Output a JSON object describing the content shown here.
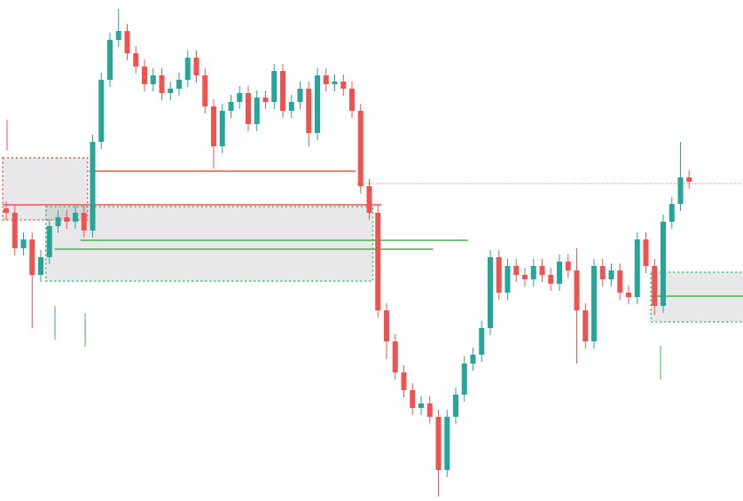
{
  "chart_data": {
    "type": "candlestick",
    "up_color": "#26a69a",
    "down_color": "#ef5350",
    "ylim": [
      0,
      565
    ],
    "open": [
      330,
      325,
      285,
      295,
      255,
      275,
      310,
      320,
      315,
      325,
      305,
      405,
      475,
      520,
      530,
      505,
      490,
      470,
      480,
      460,
      465,
      475,
      500,
      480,
      445,
      400,
      440,
      450,
      460,
      425,
      455,
      450,
      485,
      440,
      450,
      465,
      415,
      480,
      470,
      473,
      465,
      440,
      355,
      325,
      215,
      180,
      145,
      125,
      105,
      110,
      95,
      35,
      95,
      120,
      155,
      165,
      195,
      275,
      235,
      265,
      255,
      250,
      265,
      255,
      245,
      270,
      260,
      215,
      180,
      265,
      250,
      260,
      235,
      230,
      295,
      265,
      220,
      315,
      335,
      365
    ],
    "high": [
      338,
      333,
      303,
      303,
      283,
      318,
      328,
      328,
      333,
      333,
      413,
      483,
      528,
      555,
      538,
      513,
      498,
      488,
      488,
      473,
      483,
      508,
      508,
      488,
      453,
      448,
      458,
      468,
      468,
      463,
      463,
      493,
      493,
      458,
      473,
      473,
      488,
      488,
      481,
      481,
      473,
      448,
      363,
      333,
      223,
      188,
      153,
      133,
      118,
      118,
      103,
      103,
      128,
      163,
      173,
      203,
      283,
      283,
      273,
      273,
      263,
      273,
      273,
      263,
      278,
      278,
      285,
      223,
      273,
      273,
      268,
      268,
      243,
      303,
      303,
      273,
      323,
      343,
      405,
      373
    ],
    "low": [
      317,
      277,
      277,
      195,
      247,
      267,
      302,
      307,
      307,
      297,
      297,
      397,
      467,
      512,
      497,
      482,
      462,
      462,
      452,
      452,
      457,
      467,
      472,
      437,
      375,
      392,
      432,
      442,
      417,
      417,
      442,
      442,
      432,
      432,
      442,
      400,
      407,
      462,
      462,
      457,
      432,
      347,
      317,
      207,
      160,
      137,
      117,
      97,
      97,
      87,
      5,
      27,
      87,
      112,
      147,
      157,
      187,
      227,
      227,
      247,
      242,
      242,
      247,
      237,
      237,
      252,
      155,
      172,
      172,
      242,
      242,
      227,
      222,
      222,
      257,
      210,
      212,
      307,
      327,
      352
    ],
    "close": [
      325,
      285,
      295,
      255,
      275,
      310,
      320,
      315,
      325,
      305,
      405,
      475,
      520,
      530,
      505,
      490,
      470,
      480,
      460,
      465,
      475,
      500,
      480,
      445,
      400,
      440,
      450,
      460,
      425,
      455,
      450,
      485,
      440,
      450,
      465,
      415,
      480,
      470,
      473,
      465,
      440,
      355,
      325,
      215,
      180,
      145,
      125,
      105,
      110,
      95,
      35,
      95,
      120,
      155,
      165,
      195,
      275,
      235,
      265,
      255,
      250,
      265,
      255,
      245,
      270,
      260,
      215,
      180,
      265,
      250,
      260,
      235,
      230,
      295,
      265,
      220,
      315,
      335,
      365,
      360
    ],
    "zones": [
      {
        "top": 387,
        "bottom": 317,
        "from": 0,
        "to": 9,
        "color": "#ef5350"
      },
      {
        "top": 332,
        "bottom": 248,
        "from": 5,
        "to": 42,
        "color": "#22c55e"
      },
      {
        "top": 258,
        "bottom": 202,
        "from": 75,
        "to": 85,
        "color": "#22c55e"
      }
    ],
    "levels": [
      {
        "price": 372,
        "from": 10,
        "to": 40,
        "color": "#ef5350"
      },
      {
        "price": 334,
        "from": 0,
        "to": 43,
        "color": "#ef5350"
      },
      {
        "price": 294,
        "from": 9,
        "to": 53,
        "color": "#4caf50"
      },
      {
        "price": 284,
        "from": 6,
        "to": 49,
        "color": "#4caf50"
      },
      {
        "price": 231,
        "from": 75,
        "to": 85,
        "color": "#4caf50"
      },
      {
        "price": 358,
        "from": 41,
        "to": 85,
        "color": "#ef5350",
        "dotted": true
      }
    ]
  }
}
